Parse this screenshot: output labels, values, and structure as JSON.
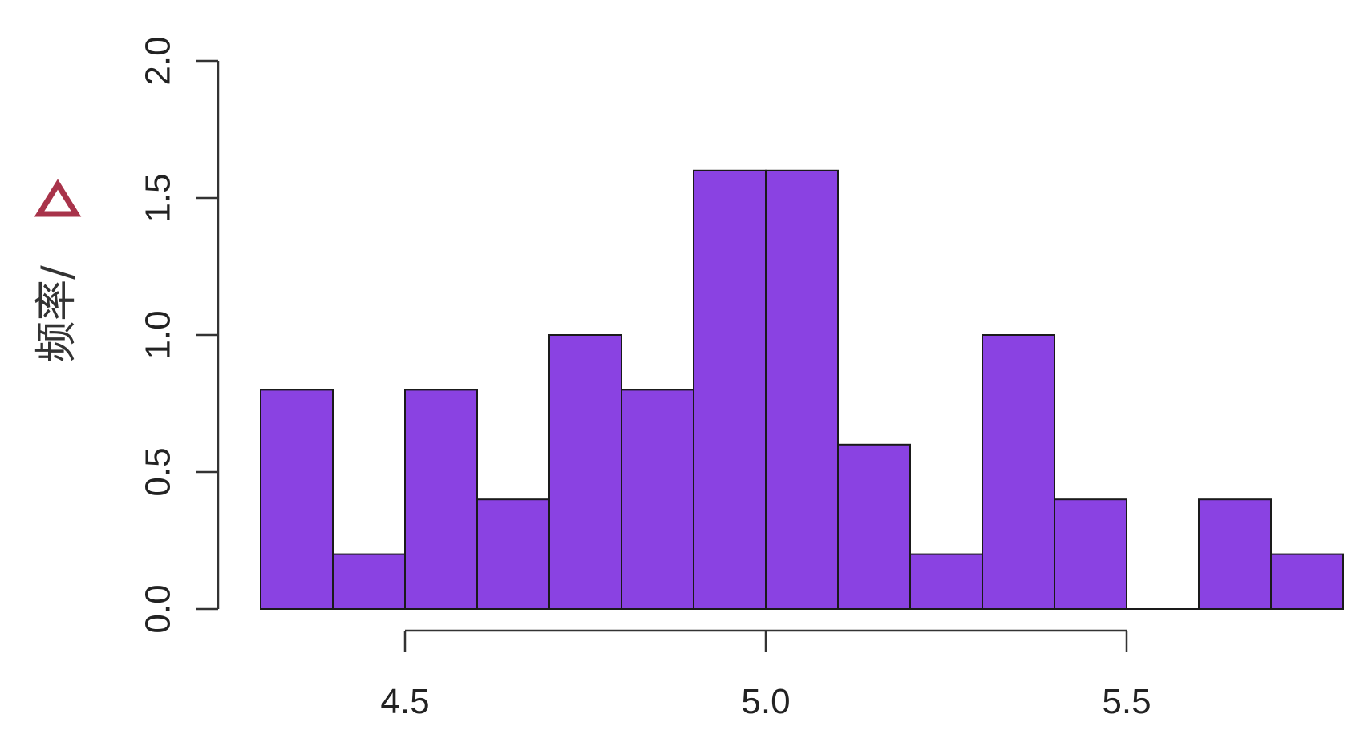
{
  "chart_data": {
    "type": "bar",
    "subtype": "histogram",
    "bin_edges": [
      4.3,
      4.4,
      4.5,
      4.6,
      4.7,
      4.8,
      4.9,
      5.0,
      5.1,
      5.2,
      5.3,
      5.4,
      5.5,
      5.6,
      5.7,
      5.8
    ],
    "values": [
      0.8,
      0.2,
      0.8,
      0.4,
      1.0,
      0.8,
      1.6,
      1.6,
      0.6,
      0.2,
      1.0,
      0.4,
      0.0,
      0.4,
      0.2
    ],
    "title": "",
    "xlabel": "",
    "ylabel": "频率/",
    "ylabel_marker": "triangle",
    "ylabel_marker_color": "#a8334a",
    "xticks": [
      4.5,
      5.0,
      5.5
    ],
    "xtick_labels": [
      "4.5",
      "5.0",
      "5.5"
    ],
    "yticks": [
      0.0,
      0.5,
      1.0,
      1.5,
      2.0
    ],
    "ytick_labels": [
      "0.0",
      "0.5",
      "1.0",
      "1.5",
      "2.0"
    ],
    "ylim": [
      0,
      2.0
    ],
    "xlim": [
      4.3,
      5.8
    ],
    "grid": false,
    "bar_color": "#8a42e2",
    "edge_color": "#1a1a1a"
  }
}
